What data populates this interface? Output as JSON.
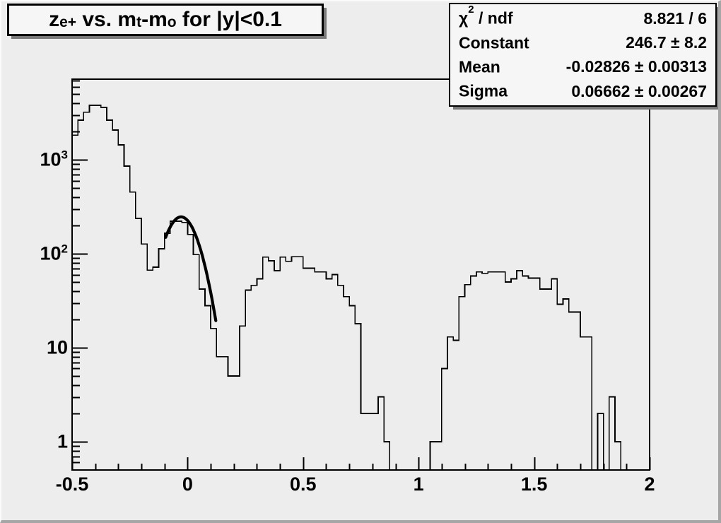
{
  "title": {
    "full_text": "z_{e+} vs. m_{t}-m_{o} for |y|<0.1",
    "p1": "z",
    "s1": "e+",
    "p2": " vs. m",
    "s2": "t",
    "p3": "-m",
    "s3": "o",
    "p4": " for |y|<0.1"
  },
  "stats": {
    "rows": [
      {
        "label_pre": "χ",
        "label_sup": "2",
        "label_post": " / ndf",
        "value": "8.821 / 6"
      },
      {
        "label_pre": "Constant",
        "label_sup": "",
        "label_post": "",
        "value": "246.7 ± 8.2"
      },
      {
        "label_pre": "Mean",
        "label_sup": "",
        "label_post": "",
        "value": "-0.02826 ± 0.00313"
      },
      {
        "label_pre": "Sigma",
        "label_sup": "",
        "label_post": "",
        "value": "0.06662 ± 0.00267"
      }
    ]
  },
  "x_axis": {
    "ticks": [
      {
        "value": -0.5,
        "text": "-0.5"
      },
      {
        "value": 0,
        "text": "0"
      },
      {
        "value": 0.5,
        "text": "0.5"
      },
      {
        "value": 1,
        "text": "1"
      },
      {
        "value": 1.5,
        "text": "1.5"
      },
      {
        "value": 2,
        "text": "2"
      }
    ],
    "minor_step": 0.1
  },
  "y_axis": {
    "scale": "log",
    "ticks": [
      {
        "value": 1,
        "text": "1",
        "exp": ""
      },
      {
        "value": 10,
        "text": "10",
        "exp": ""
      },
      {
        "value": 100,
        "text": "10",
        "exp": "2"
      },
      {
        "value": 1000,
        "text": "10",
        "exp": "3"
      }
    ]
  },
  "colors": {
    "canvas_bg": "#ededed",
    "pave_bg": "#f6f6f6",
    "line": "#000000"
  },
  "chart_data": {
    "type": "histogram",
    "title": "z_{e+} vs. m_t-m_o for |y|<0.1",
    "x_min": -0.5,
    "x_max": 2.0,
    "n_bins": 100,
    "y_scale": "log",
    "y_min": 0.5,
    "y_max": 7200,
    "grid": false,
    "bin_values": [
      1830,
      2640,
      3200,
      3790,
      3790,
      3600,
      2640,
      2070,
      1440,
      855,
      452,
      238,
      127,
      67,
      72,
      113,
      165,
      222,
      222,
      215,
      160,
      98,
      42,
      28,
      16,
      8,
      8,
      5,
      5,
      17,
      41,
      46,
      54,
      92,
      84,
      66,
      92,
      83,
      93,
      93,
      70,
      70,
      64,
      64,
      54,
      60,
      46,
      35,
      28,
      18,
      2,
      2,
      2,
      3,
      1,
      0,
      0,
      0,
      0,
      0,
      0,
      0,
      1,
      1,
      6,
      13,
      12,
      35,
      47,
      58,
      64,
      62,
      64,
      64,
      64,
      50,
      54,
      66,
      58,
      55,
      55,
      42,
      42,
      54,
      29,
      33,
      24,
      24,
      13,
      13,
      0,
      2,
      0,
      3,
      1,
      0,
      0,
      0,
      0,
      0
    ],
    "fit": {
      "type": "gaussian",
      "chi2": 8.821,
      "ndf": 6,
      "constant": 246.7,
      "constant_err": 8.2,
      "mean": -0.02826,
      "mean_err": 0.00313,
      "sigma": 0.06662,
      "sigma_err": 0.00267,
      "draw_min": -0.095,
      "draw_max": 0.122
    }
  }
}
